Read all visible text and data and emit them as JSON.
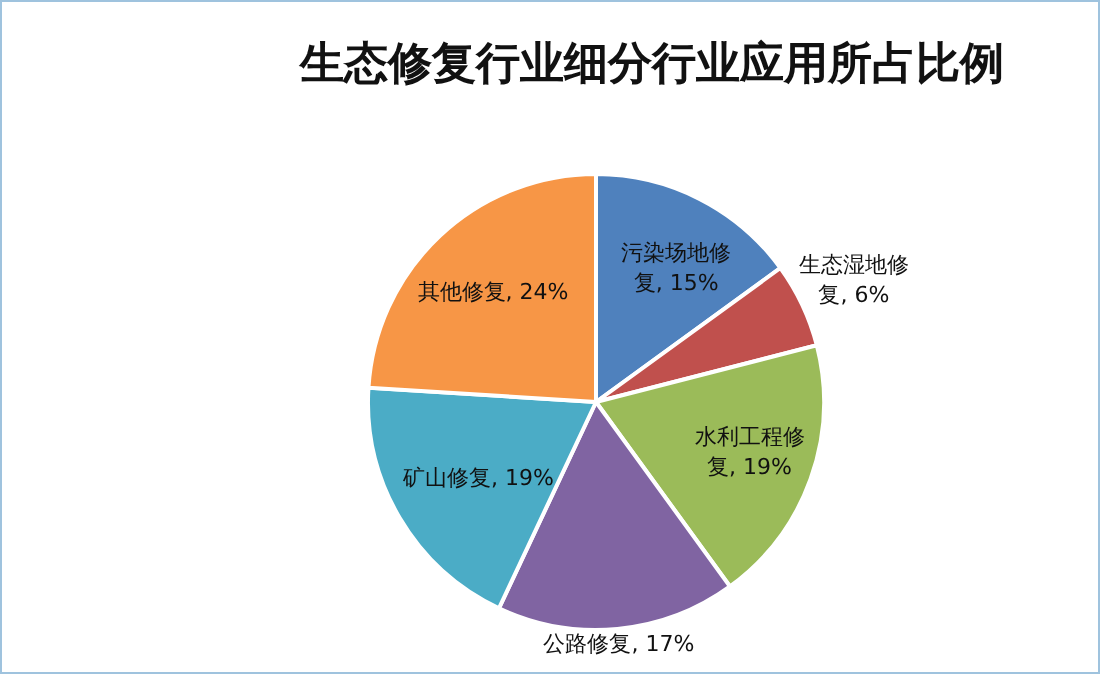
{
  "chart_data": {
    "type": "pie",
    "title": "生态修复行业细分行业应用所占比例",
    "categories": [
      "污染场地修复",
      "生态湿地修复",
      "水利工程修复",
      "公路修复",
      "矿山修复",
      "其他修复"
    ],
    "values": [
      15,
      6,
      19,
      17,
      19,
      24
    ],
    "value_labels": [
      "15%",
      "6%",
      "19%",
      "17%",
      "19%",
      "24%"
    ],
    "colors": [
      "#4f81bd",
      "#c0504d",
      "#9bbb59",
      "#8064a2",
      "#4bacc6",
      "#f79646"
    ]
  }
}
